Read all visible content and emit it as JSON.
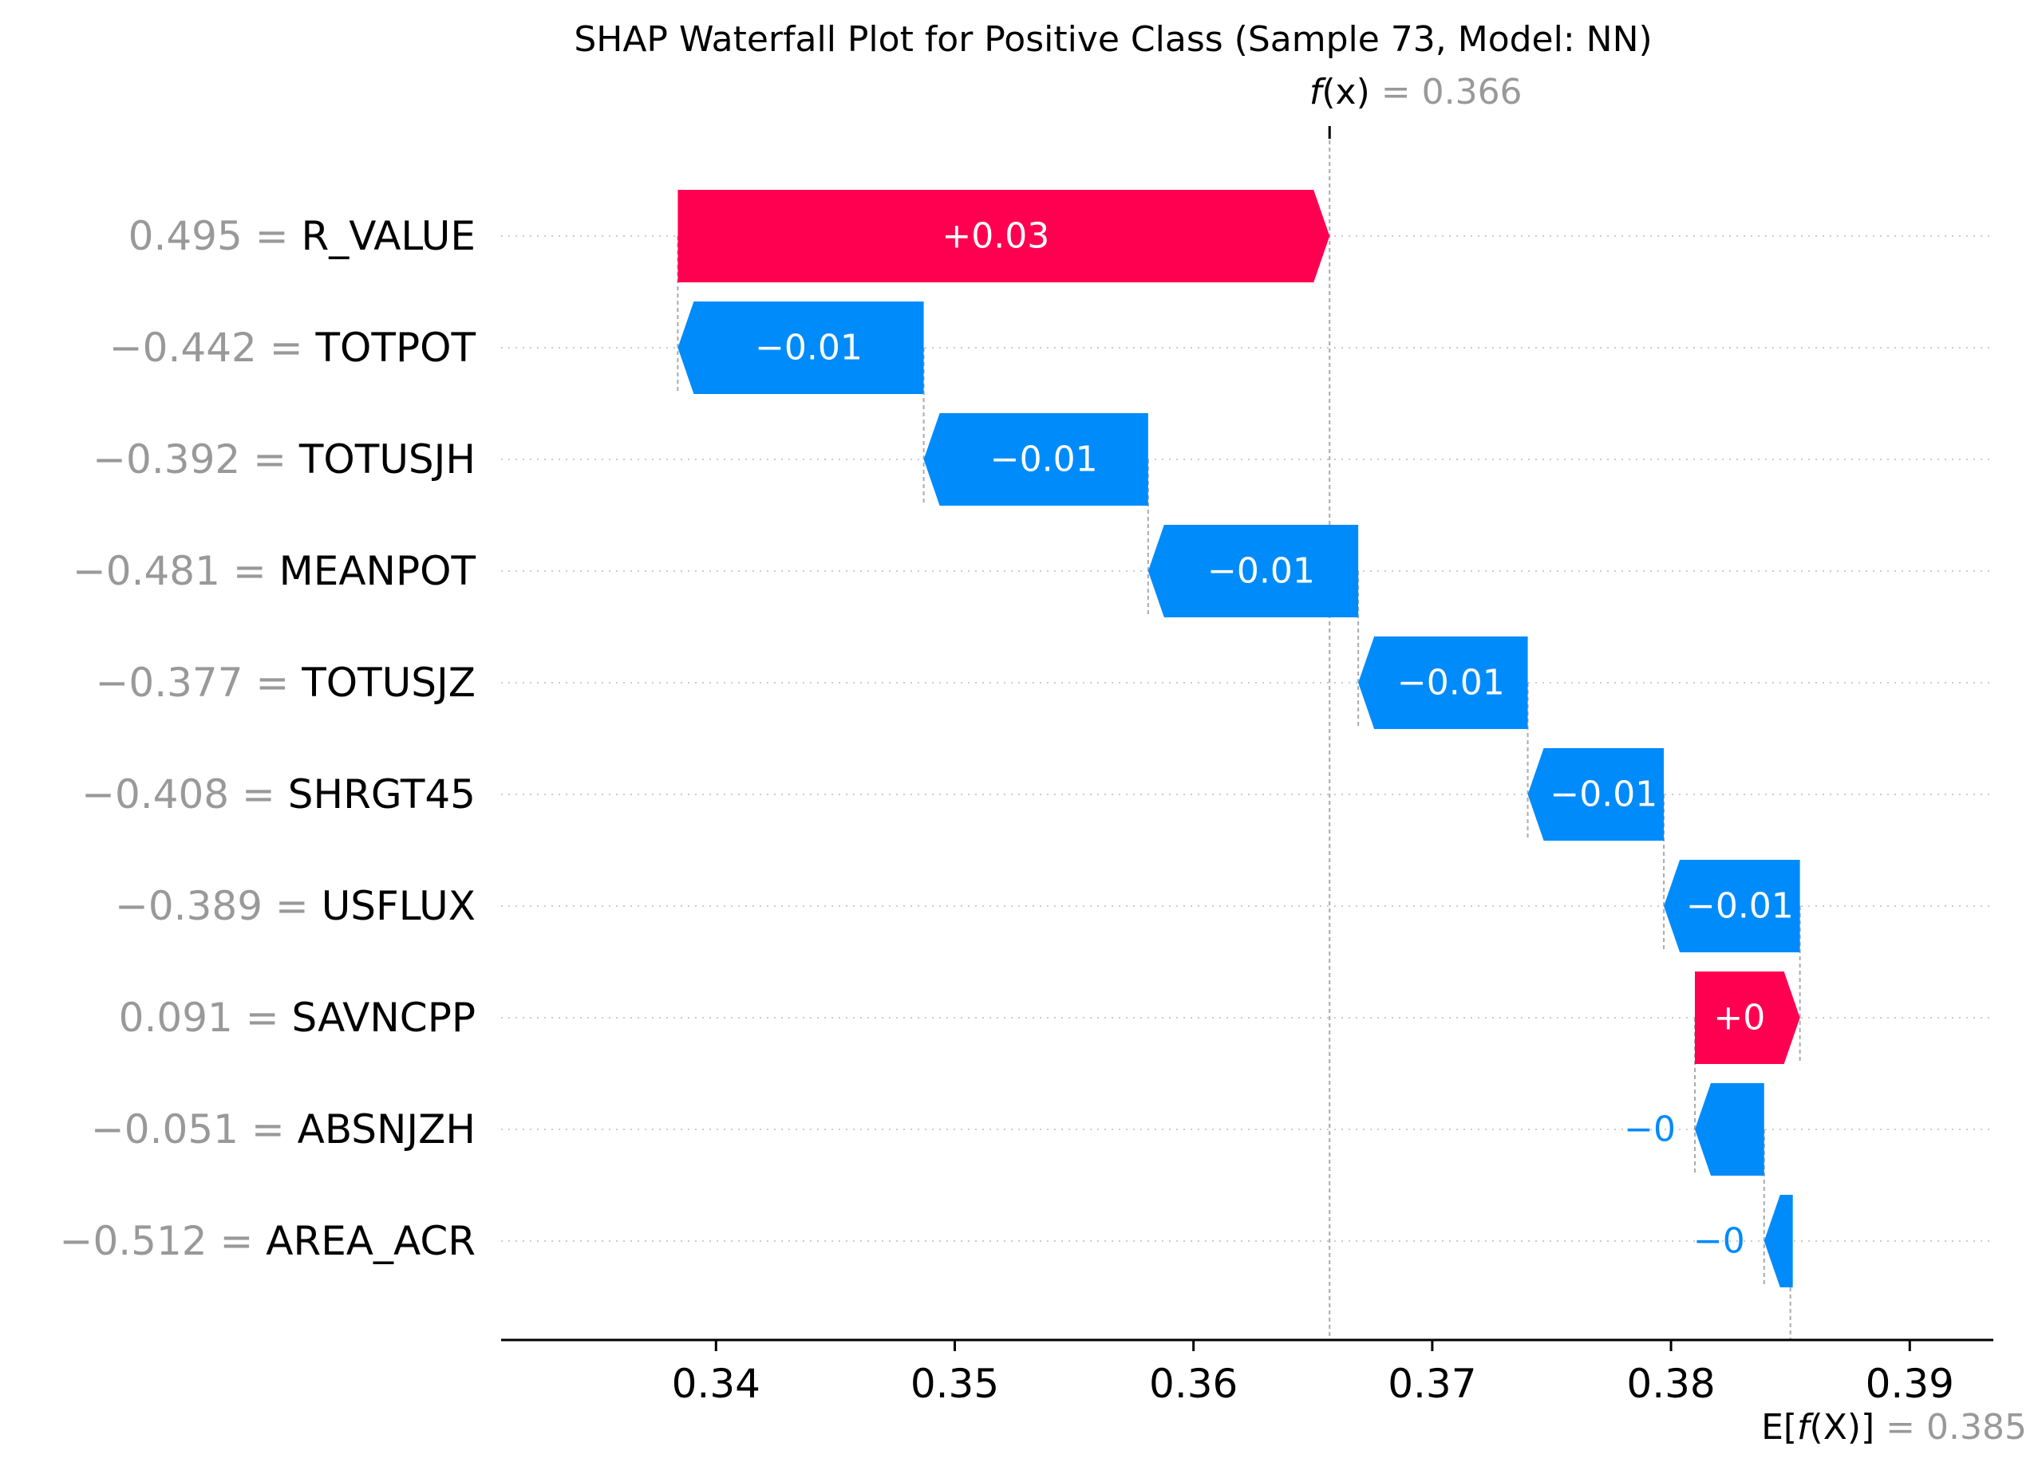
{
  "chart_data": {
    "type": "waterfall",
    "title": "SHAP Waterfall Plot for Positive Class (Sample 73, Model: NN)",
    "fx": {
      "label_italic": "f",
      "label_rest": "(x)",
      "value_text": "= 0.366",
      "value": 0.3657
    },
    "efx": {
      "label_prefix": "E[",
      "label_italic": "f",
      "label_rest": "(X)]",
      "value_text": "= 0.385",
      "value": 0.385
    },
    "xlim": [
      0.331,
      0.3935
    ],
    "xticks": [
      {
        "value": 0.34,
        "label": "0.34"
      },
      {
        "value": 0.35,
        "label": "0.35"
      },
      {
        "value": 0.36,
        "label": "0.36"
      },
      {
        "value": 0.37,
        "label": "0.37"
      },
      {
        "value": 0.38,
        "label": "0.38"
      },
      {
        "value": 0.39,
        "label": "0.39"
      }
    ],
    "features": [
      {
        "feature_value": "0.495",
        "name": "R_VALUE",
        "start": 0.3384,
        "end": 0.3657,
        "label": "+0.03"
      },
      {
        "feature_value": "−0.442",
        "name": "TOTPOT",
        "start": 0.3487,
        "end": 0.3384,
        "label": "−0.01"
      },
      {
        "feature_value": "−0.392",
        "name": "TOTUSJH",
        "start": 0.3581,
        "end": 0.3487,
        "label": "−0.01"
      },
      {
        "feature_value": "−0.481",
        "name": "MEANPOT",
        "start": 0.3669,
        "end": 0.3581,
        "label": "−0.01"
      },
      {
        "feature_value": "−0.377",
        "name": "TOTUSJZ",
        "start": 0.374,
        "end": 0.3669,
        "label": "−0.01"
      },
      {
        "feature_value": "−0.408",
        "name": "SHRGT45",
        "start": 0.3797,
        "end": 0.374,
        "label": "−0.01"
      },
      {
        "feature_value": "−0.389",
        "name": "USFLUX",
        "start": 0.3854,
        "end": 0.3797,
        "label": "−0.01"
      },
      {
        "feature_value": "0.091",
        "name": "SAVNCPP",
        "start": 0.381,
        "end": 0.3854,
        "label": "+0"
      },
      {
        "feature_value": "−0.051",
        "name": "ABSNJZH",
        "start": 0.3839,
        "end": 0.381,
        "label": "−0"
      },
      {
        "feature_value": "−0.512",
        "name": "AREA_ACR",
        "start": 0.3851,
        "end": 0.3839,
        "label": "−0"
      }
    ],
    "colors": {
      "positive": "#ff0051",
      "negative": "#008bfb",
      "gray": "#999999",
      "text": "#000000"
    },
    "grid": "horizontal-dotted"
  }
}
